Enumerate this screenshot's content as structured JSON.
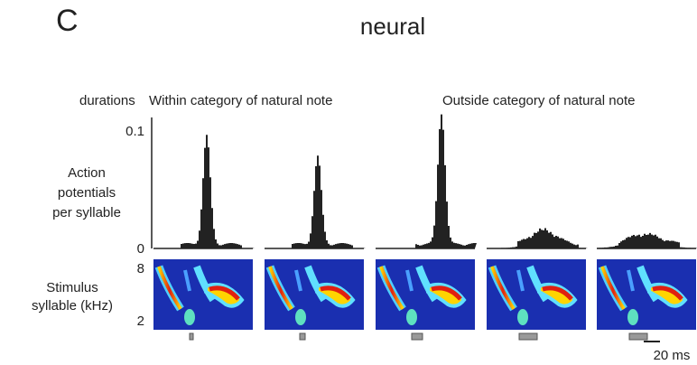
{
  "panel_label": "C",
  "title": "neural",
  "labels": {
    "durations": "durations",
    "within": "Within category of natural note",
    "outside": "Outside category of natural note",
    "y_axis": [
      "Action",
      "potentials",
      "per syllable"
    ],
    "stim": [
      "Stimulus",
      "syllable (kHz)"
    ]
  },
  "y_ticks": [
    "0.1",
    "0"
  ],
  "freq_ticks": [
    "8",
    "2"
  ],
  "scale_bar": "20 ms"
}
